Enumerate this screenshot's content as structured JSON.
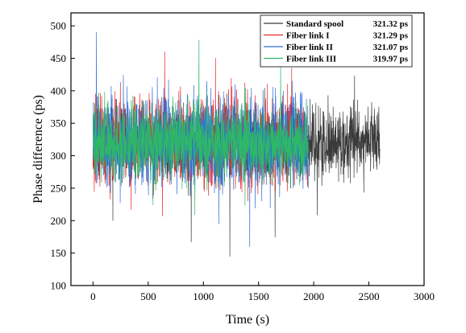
{
  "chart_data": {
    "type": "line",
    "xlabel": "Time (s)",
    "ylabel": "Phase difference (ps)",
    "xlim": [
      -200,
      3000
    ],
    "ylim": [
      100,
      520
    ],
    "xticks": [
      0,
      500,
      1000,
      1500,
      2000,
      2500,
      3000
    ],
    "yticks": [
      100,
      150,
      200,
      250,
      300,
      350,
      400,
      450,
      500
    ],
    "grid": false,
    "legend_position": "top-right",
    "series": [
      {
        "name": "Standard spool",
        "value_label": "321.32 ps",
        "color": "#3a3a3a",
        "x_range": [
          0,
          2600
        ],
        "mean": 321.32,
        "typical_range": [
          270,
          380
        ],
        "extremes": [
          {
            "x": 180,
            "y": 200
          },
          {
            "x": 890,
            "y": 167
          },
          {
            "x": 1240,
            "y": 145
          },
          {
            "x": 1650,
            "y": 175
          },
          {
            "x": 2370,
            "y": 423
          }
        ]
      },
      {
        "name": "Fiber link I",
        "value_label": "321.29 ps",
        "color": "#e8262d",
        "x_range": [
          0,
          1950
        ],
        "mean": 321.29,
        "typical_range": [
          255,
          390
        ],
        "extremes": [
          {
            "x": 630,
            "y": 207
          },
          {
            "x": 650,
            "y": 460
          },
          {
            "x": 1110,
            "y": 450
          },
          {
            "x": 1800,
            "y": 435
          }
        ]
      },
      {
        "name": "Fiber link II",
        "value_label": "321.07 ps",
        "color": "#2e6fd6",
        "x_range": [
          0,
          1950
        ],
        "mean": 321.07,
        "typical_range": [
          255,
          395
        ],
        "extremes": [
          {
            "x": 30,
            "y": 490
          },
          {
            "x": 1140,
            "y": 195
          },
          {
            "x": 1420,
            "y": 160
          }
        ]
      },
      {
        "name": "Fiber link III",
        "value_label": "319.97 ps",
        "color": "#2eb866",
        "x_range": [
          0,
          1950
        ],
        "mean": 319.97,
        "typical_range": [
          265,
          380
        ],
        "extremes": [
          {
            "x": 960,
            "y": 478
          },
          {
            "x": 1700,
            "y": 440
          }
        ]
      }
    ]
  }
}
